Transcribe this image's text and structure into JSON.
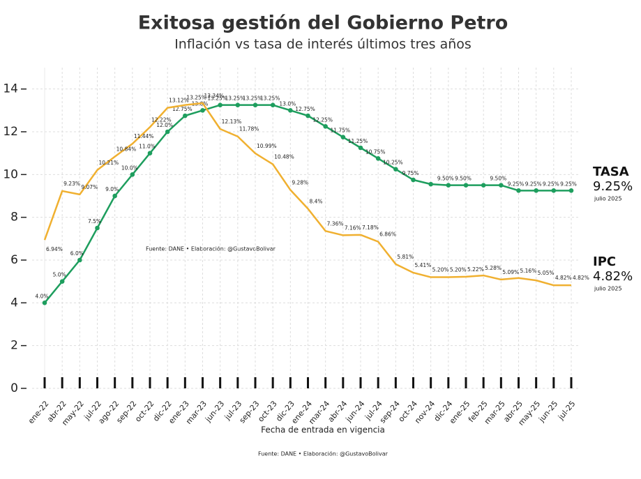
{
  "chart_data": {
    "type": "line",
    "title": "Exitosa gestión del Gobierno Petro",
    "subtitle": "Inflación vs tasa de interés últimos tres años",
    "x_label": "Fecha de entrada en vigencia",
    "source_note": "Fuente: DANE • Elaboración: @GustavoBolivar",
    "footer": "Fuente: DANE • Elaboración: @GustavoBolivar",
    "categories": [
      "ene-22",
      "abr-22",
      "may-22",
      "jul-22",
      "ago-22",
      "sep-22",
      "oct-22",
      "dic-22",
      "ene-23",
      "mar-23",
      "jun-23",
      "jul-23",
      "sep-23",
      "oct-23",
      "dic-23",
      "ene-24",
      "mar-24",
      "abr-24",
      "jun-24",
      "jul-24",
      "sep-24",
      "oct-24",
      "nov-24",
      "dic-24",
      "ene-25",
      "feb-25",
      "mar-25",
      "abr-25",
      "may-25",
      "jun-25",
      "jul-25"
    ],
    "series": [
      {
        "name": "TASA",
        "color": "#1e9e5e",
        "markers": true,
        "values": [
          4.0,
          5.0,
          6.0,
          7.5,
          9.0,
          10.0,
          11.0,
          12.0,
          12.75,
          13.0,
          13.25,
          13.25,
          13.25,
          13.25,
          13.0,
          12.75,
          12.25,
          11.75,
          11.25,
          10.75,
          10.25,
          9.75,
          9.55,
          9.5,
          9.5,
          9.5,
          9.5,
          9.25,
          9.25,
          9.25,
          9.25
        ],
        "value_labels": [
          "4.0%",
          "5.0%",
          "6.0%",
          "7.5%",
          "9.0%",
          "10.0%",
          "11.0%",
          "12.0%",
          "12.75%",
          "13.0%",
          "13.25%",
          "13.25%",
          "13.25%",
          "13.25%",
          "13.0%",
          "12.75%",
          "12.25%",
          "11.75%",
          "11.25%",
          "10.75%",
          "10.25%",
          "9.75%",
          null,
          "9.50%",
          "9.50%",
          null,
          "9.50%",
          "9.25%",
          "9.25%",
          "9.25%",
          "9.25%"
        ],
        "end_value": "9.25%",
        "end_date": "julio 2025"
      },
      {
        "name": "IPC",
        "color": "#f0b030",
        "markers": false,
        "values": [
          6.94,
          9.23,
          9.07,
          10.21,
          10.84,
          11.44,
          12.22,
          13.12,
          13.25,
          13.34,
          12.13,
          11.78,
          10.99,
          10.48,
          9.28,
          8.4,
          7.36,
          7.16,
          7.18,
          6.86,
          5.81,
          5.41,
          5.2,
          5.2,
          5.22,
          5.28,
          5.09,
          5.16,
          5.05,
          4.82,
          4.82
        ],
        "value_labels": [
          "6.94%",
          "9.23%",
          "9.07%",
          "10.21%",
          "10.84%",
          "11.44%",
          "12.22%",
          "13.12%",
          "13.25%",
          "13.34%",
          "12.13%",
          "11.78%",
          "10.99%",
          "10.48%",
          "9.28%",
          "8.4%",
          "7.36%",
          "7.16%",
          "7.18%",
          "6.86%",
          "5.81%",
          "5.41%",
          "5.20%",
          "5.20%",
          "5.22%",
          "5.28%",
          "5.09%",
          "5.16%",
          "5.05%",
          "4.82%",
          "4.82%"
        ],
        "end_value": "4.82%",
        "end_date": "julio 2025"
      }
    ],
    "ylim": [
      0,
      15
    ],
    "yticks": [
      0,
      2,
      4,
      6,
      8,
      10,
      12,
      14
    ],
    "grid": true
  }
}
